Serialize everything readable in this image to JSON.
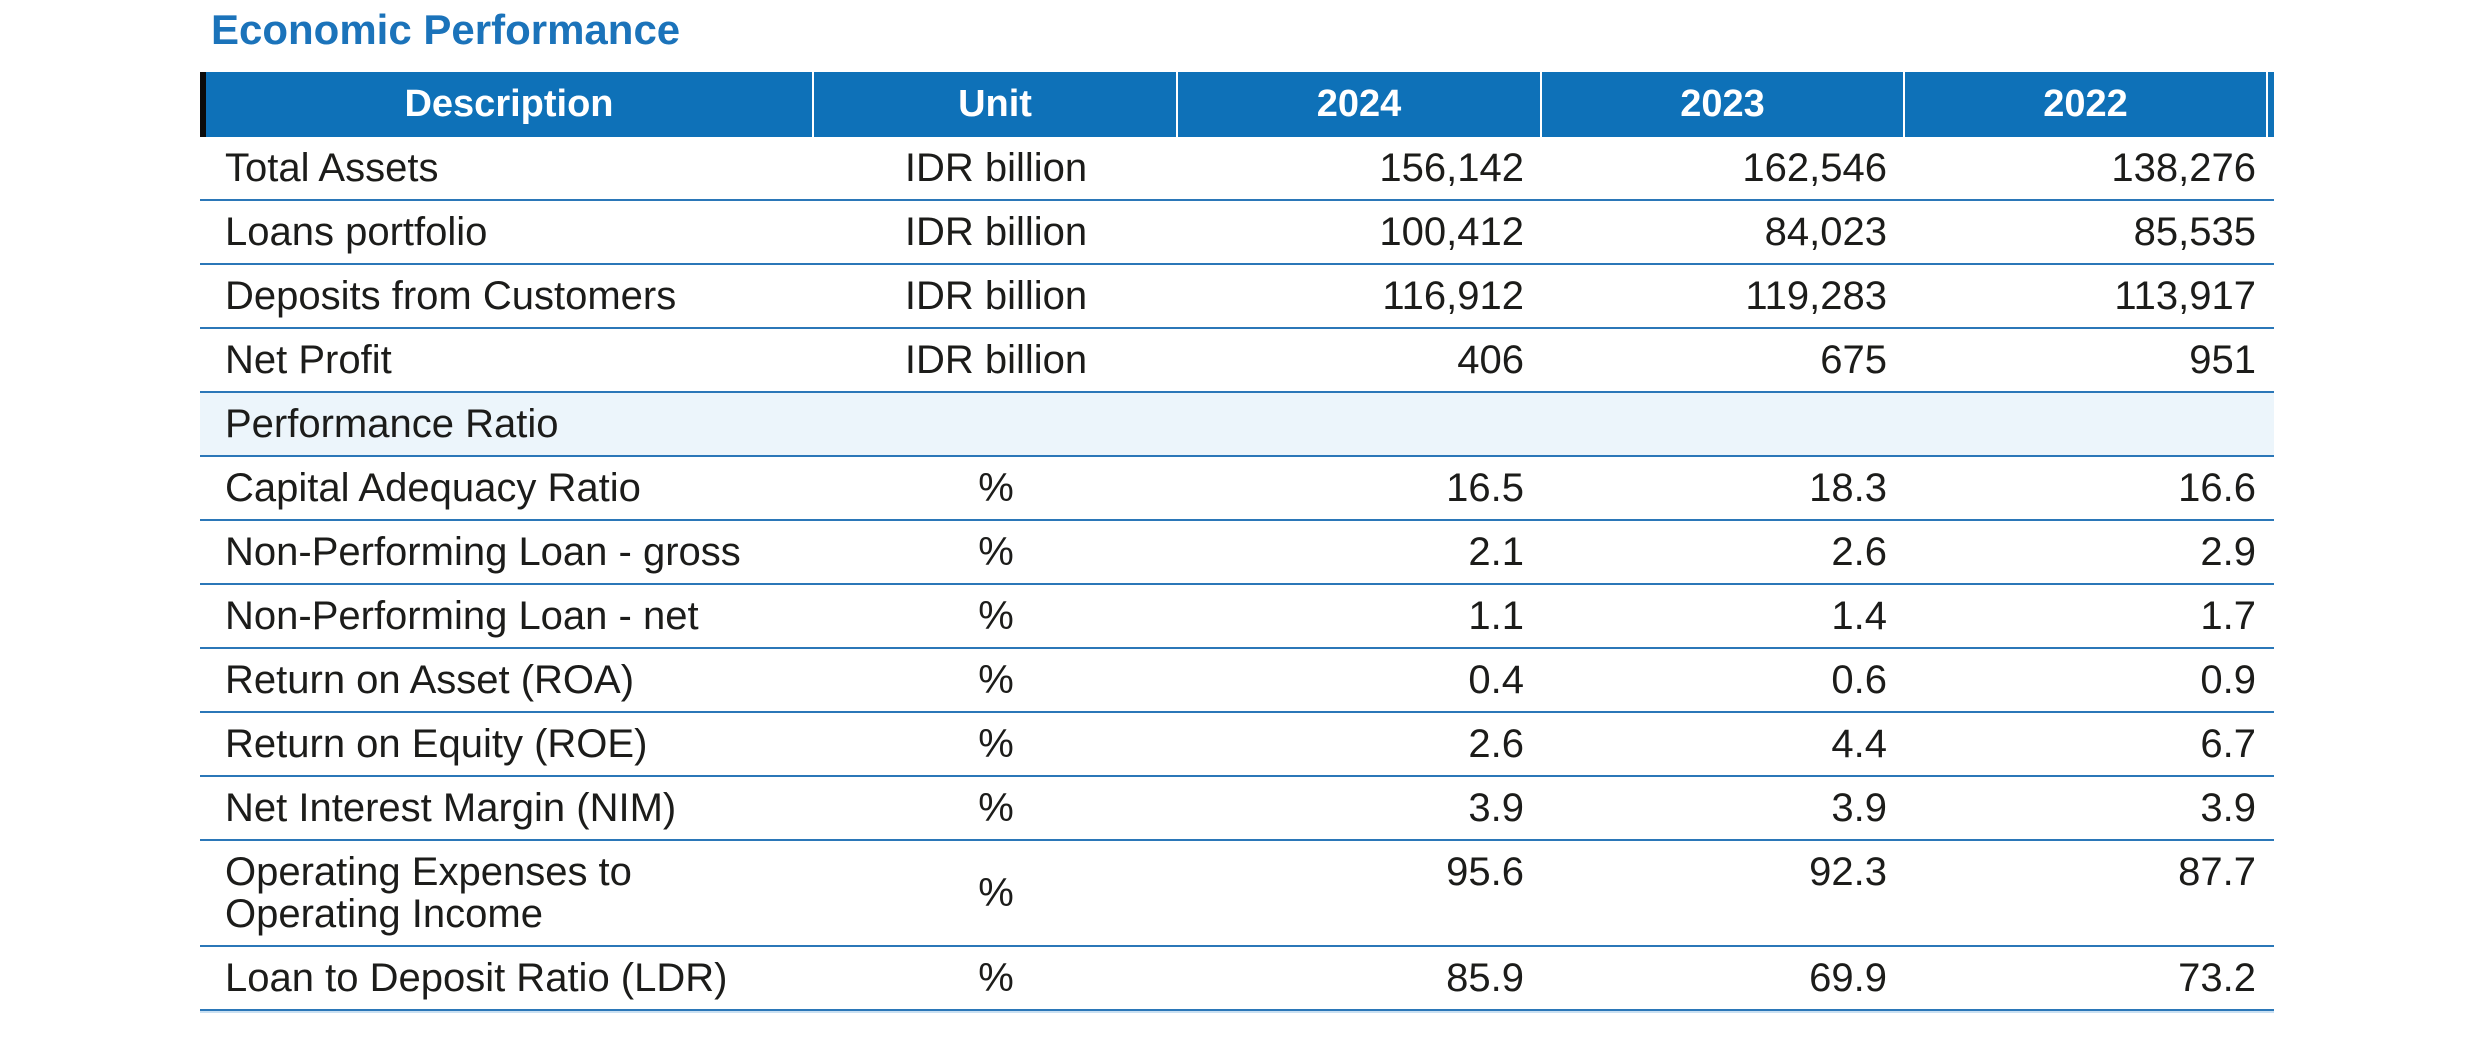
{
  "page": {
    "title": "Economic Performance"
  },
  "colors": {
    "header_bg": "#0e71b8",
    "header_text": "#ffffff",
    "title_blue": "#1b73ba",
    "row_divider": "#2b77b8",
    "section_row_bg": "#ecf5fb",
    "body_text": "#1c1c1a",
    "header_accent_bar": "#0b0b0b"
  },
  "table": {
    "columns": [
      "Description",
      "Unit",
      "2024",
      "2023",
      "2022"
    ],
    "rows": [
      {
        "type": "data",
        "label": "Total Assets",
        "unit": "IDR billion",
        "values": [
          "156,142",
          "162,546",
          "138,276"
        ]
      },
      {
        "type": "data",
        "label": "Loans portfolio",
        "unit": "IDR billion",
        "values": [
          "100,412",
          "84,023",
          "85,535"
        ]
      },
      {
        "type": "data",
        "label": "Deposits from Customers",
        "unit": "IDR billion",
        "values": [
          "116,912",
          "119,283",
          "113,917"
        ]
      },
      {
        "type": "data",
        "label": "Net Profit",
        "unit": "IDR billion",
        "values": [
          "406",
          "675",
          "951"
        ]
      },
      {
        "type": "section",
        "label": "Performance Ratio"
      },
      {
        "type": "data",
        "label": "Capital Adequacy Ratio",
        "unit": "%",
        "values": [
          "16.5",
          "18.3",
          "16.6"
        ]
      },
      {
        "type": "data",
        "label": "Non-Performing Loan - gross",
        "unit": "%",
        "values": [
          "2.1",
          "2.6",
          "2.9"
        ]
      },
      {
        "type": "data",
        "label": "Non-Performing Loan - net",
        "unit": "%",
        "values": [
          "1.1",
          "1.4",
          "1.7"
        ]
      },
      {
        "type": "data",
        "label": "Return on Asset (ROA)",
        "unit": "%",
        "values": [
          "0.4",
          "0.6",
          "0.9"
        ]
      },
      {
        "type": "data",
        "label": "Return on Equity (ROE)",
        "unit": "%",
        "values": [
          "2.6",
          "4.4",
          "6.7"
        ]
      },
      {
        "type": "data",
        "label": "Net Interest Margin (NIM)",
        "unit": "%",
        "values": [
          "3.9",
          "3.9",
          "3.9"
        ]
      },
      {
        "type": "data",
        "label": "Operating Expenses to\nOperating Income",
        "unit": "%",
        "values": [
          "95.6",
          "92.3",
          "87.7"
        ]
      },
      {
        "type": "data",
        "label": "Loan to Deposit Ratio (LDR)",
        "unit": "%",
        "values": [
          "85.9",
          "69.9",
          "73.2"
        ]
      }
    ]
  }
}
